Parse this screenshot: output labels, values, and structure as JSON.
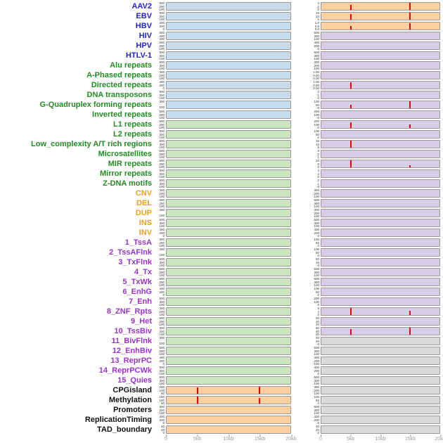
{
  "colors": {
    "label": {
      "virus": "#2525c8",
      "repeat": "#228b22",
      "sv": "#eda012",
      "chromatin": "#9933cc",
      "other": "#111111"
    },
    "panel": {
      "blue": "#c7dcec",
      "green": "#cbe5c1",
      "orange": "#fdd0a2",
      "purple": "#d7cde5",
      "gray": "#d9d9d9"
    },
    "spike": "#e60000"
  },
  "chart_data": {
    "type": "bar",
    "title": "",
    "xlabel": "",
    "ylabel": "",
    "x_ticks": [
      "0",
      "5kb",
      "10kb",
      "15kb",
      "20kb"
    ],
    "x_range_kb": [
      0,
      20
    ],
    "legend": "44 genomic feature tracks, two mini-panels per track; red spikes mark enrichment peaks near 5kb and 15kb",
    "rows": [
      {
        "label": "AAV2",
        "group": "virus",
        "left": {
          "bg": "blue",
          "yticks": [
            "500",
            "300",
            "100"
          ]
        },
        "right": {
          "bg": "orange",
          "yticks": [
            "4",
            "2",
            "0"
          ],
          "spikes": [
            {
              "kb": 5,
              "h": 0.7
            },
            {
              "kb": 15,
              "h": 1
            }
          ]
        }
      },
      {
        "label": "EBV",
        "group": "virus",
        "left": {
          "bg": "blue",
          "yticks": [
            "500",
            "300",
            "100"
          ]
        },
        "right": {
          "bg": "orange",
          "yticks": [
            "15",
            "10",
            "5"
          ],
          "spikes": [
            {
              "kb": 5,
              "h": 0.85
            },
            {
              "kb": 15,
              "h": 1
            }
          ]
        }
      },
      {
        "label": "HBV",
        "group": "virus",
        "left": {
          "bg": "blue",
          "yticks": [
            "400",
            "200",
            "0"
          ]
        },
        "right": {
          "bg": "orange",
          "yticks": [
            "1.0",
            "0.5",
            "0.0"
          ],
          "spikes": [
            {
              "kb": 5,
              "h": 0.55
            },
            {
              "kb": 15,
              "h": 0.9
            }
          ]
        }
      },
      {
        "label": "HIV",
        "group": "virus",
        "left": {
          "bg": "blue",
          "yticks": [
            "600",
            "400",
            "200"
          ]
        },
        "right": {
          "bg": "purple",
          "yticks": [
            "500",
            "300",
            "100"
          ]
        }
      },
      {
        "label": "HPV",
        "group": "virus",
        "left": {
          "bg": "blue",
          "yticks": [
            "500",
            "300",
            "100"
          ]
        },
        "right": {
          "bg": "purple",
          "yticks": [
            "400",
            "200",
            "0"
          ]
        }
      },
      {
        "label": "HTLV-1",
        "group": "virus",
        "left": {
          "bg": "blue",
          "yticks": [
            "500",
            "300",
            "100"
          ]
        },
        "right": {
          "bg": "purple",
          "yticks": [
            "500",
            "300",
            "100"
          ]
        }
      },
      {
        "label": "Alu repeats",
        "group": "repeat",
        "left": {
          "bg": "blue",
          "yticks": [
            "500",
            "300",
            "100"
          ]
        },
        "right": {
          "bg": "purple",
          "yticks": [
            "300",
            "200",
            "100"
          ]
        }
      },
      {
        "label": "A-Phased repeats",
        "group": "repeat",
        "left": {
          "bg": "blue",
          "yticks": [
            "300",
            "200",
            "100"
          ]
        },
        "right": {
          "bg": "purple",
          "yticks": [
            "1.00",
            "0.50",
            "0.00"
          ]
        }
      },
      {
        "label": "Directed repeats",
        "group": "repeat",
        "left": {
          "bg": "blue",
          "yticks": [
            "400",
            "200",
            "0"
          ]
        },
        "right": {
          "bg": "purple",
          "yticks": [
            "1.00",
            "0.50",
            "0.00"
          ],
          "spikes": [
            {
              "kb": 5,
              "h": 0.9
            }
          ]
        }
      },
      {
        "label": "DNA transposons",
        "group": "repeat",
        "left": {
          "bg": "blue",
          "yticks": [
            "500",
            "300",
            "100"
          ]
        },
        "right": {
          "bg": "purple",
          "yticks": [
            "2",
            "1",
            "0"
          ]
        }
      },
      {
        "label": "G-Quadruplex forming repeats",
        "group": "repeat",
        "left": {
          "bg": "blue",
          "yticks": [
            "300",
            "100"
          ]
        },
        "right": {
          "bg": "purple",
          "yticks": [
            "100",
            "50",
            "0"
          ],
          "spikes": [
            {
              "kb": 5,
              "h": 0.5
            },
            {
              "kb": 15,
              "h": 1
            }
          ]
        }
      },
      {
        "label": "Inverted repeats",
        "group": "repeat",
        "left": {
          "bg": "blue",
          "yticks": [
            "500",
            "300",
            "100"
          ]
        },
        "right": {
          "bg": "purple",
          "yticks": [
            "200",
            "100",
            "0"
          ]
        }
      },
      {
        "label": "L1 repeats",
        "group": "repeat",
        "left": {
          "bg": "green",
          "yticks": [
            "500",
            "300",
            "100"
          ]
        },
        "right": {
          "bg": "purple",
          "yticks": [
            "200",
            "100",
            "0"
          ],
          "spikes": [
            {
              "kb": 5,
              "h": 0.85
            },
            {
              "kb": 15,
              "h": 0.55
            }
          ]
        }
      },
      {
        "label": "L2 repeats",
        "group": "repeat",
        "left": {
          "bg": "green",
          "yticks": [
            "500",
            "300",
            "100"
          ]
        },
        "right": {
          "bg": "purple",
          "yticks": [
            "100",
            "50",
            "0"
          ]
        }
      },
      {
        "label": "Low_complexity A/T rich regions",
        "group": "repeat",
        "left": {
          "bg": "green",
          "yticks": [
            "500",
            "300",
            "100"
          ]
        },
        "right": {
          "bg": "purple",
          "yticks": [
            "15",
            "10",
            "5"
          ],
          "spikes": [
            {
              "kb": 5,
              "h": 1
            }
          ]
        }
      },
      {
        "label": "Microsatellites",
        "group": "repeat",
        "left": {
          "bg": "green",
          "yticks": [
            "500",
            "300",
            "100"
          ]
        },
        "right": {
          "bg": "purple",
          "yticks": [
            "3",
            "2",
            "1"
          ]
        }
      },
      {
        "label": "MIR repeats",
        "group": "repeat",
        "left": {
          "bg": "green",
          "yticks": [
            "500",
            "300",
            "100"
          ]
        },
        "right": {
          "bg": "purple",
          "yticks": [
            "10",
            "5",
            "0"
          ],
          "spikes": [
            {
              "kb": 5,
              "h": 1
            },
            {
              "kb": 15,
              "h": 0.35
            }
          ]
        }
      },
      {
        "label": "Mirror repeats",
        "group": "repeat",
        "left": {
          "bg": "green",
          "yticks": [
            "500",
            "300",
            "100"
          ]
        },
        "right": {
          "bg": "purple",
          "yticks": [
            "4",
            "2",
            "0"
          ]
        }
      },
      {
        "label": "Z-DNA motifs",
        "group": "repeat",
        "left": {
          "bg": "green",
          "yticks": [
            "500",
            "300",
            "100"
          ]
        },
        "right": {
          "bg": "purple",
          "yticks": [
            "2",
            "1",
            "0"
          ]
        }
      },
      {
        "label": "CNV",
        "group": "sv",
        "left": {
          "bg": "green",
          "yticks": [
            "300",
            "200",
            "100"
          ]
        },
        "right": {
          "bg": "purple",
          "yticks": [
            "300",
            "200",
            "100"
          ]
        }
      },
      {
        "label": "DEL",
        "group": "sv",
        "left": {
          "bg": "green",
          "yticks": [
            "300",
            "200",
            "100"
          ]
        },
        "right": {
          "bg": "purple",
          "yticks": [
            "500",
            "300",
            "100"
          ]
        }
      },
      {
        "label": "DUP",
        "group": "sv",
        "left": {
          "bg": "green",
          "yticks": [
            "300",
            "100"
          ]
        },
        "right": {
          "bg": "purple",
          "yticks": [
            "300",
            "200",
            "100"
          ]
        }
      },
      {
        "label": "INS",
        "group": "sv",
        "left": {
          "bg": "green",
          "yticks": [
            "500",
            "300",
            "100"
          ]
        },
        "right": {
          "bg": "purple",
          "yticks": [
            "500",
            "300",
            "100"
          ]
        }
      },
      {
        "label": "INV",
        "group": "sv",
        "left": {
          "bg": "green",
          "yticks": [
            "400",
            "200",
            "0"
          ]
        },
        "right": {
          "bg": "purple",
          "yticks": [
            "400",
            "200",
            "0"
          ]
        }
      },
      {
        "label": "1_TssA",
        "group": "chromatin",
        "left": {
          "bg": "green",
          "yticks": [
            "300",
            "200",
            "100"
          ]
        },
        "right": {
          "bg": "purple",
          "yticks": [
            "100",
            "50",
            "0"
          ]
        }
      },
      {
        "label": "2_TssAFlnk",
        "group": "chromatin",
        "left": {
          "bg": "green",
          "yticks": [
            "300",
            "100"
          ]
        },
        "right": {
          "bg": "purple",
          "yticks": [
            "100",
            "50",
            "0"
          ]
        }
      },
      {
        "label": "3_TxFlnk",
        "group": "chromatin",
        "left": {
          "bg": "green",
          "yticks": [
            "500",
            "300",
            "100"
          ]
        },
        "right": {
          "bg": "purple",
          "yticks": [
            "50",
            "25",
            "0"
          ]
        }
      },
      {
        "label": "4_Tx",
        "group": "chromatin",
        "left": {
          "bg": "green",
          "yticks": [
            "500",
            "300",
            "100"
          ]
        },
        "right": {
          "bg": "purple",
          "yticks": [
            "500",
            "300",
            "100"
          ]
        }
      },
      {
        "label": "5_TxWk",
        "group": "chromatin",
        "left": {
          "bg": "green",
          "yticks": [
            "500",
            "300",
            "100"
          ]
        },
        "right": {
          "bg": "purple",
          "yticks": [
            "500",
            "300",
            "100"
          ]
        }
      },
      {
        "label": "6_EnhG",
        "group": "chromatin",
        "left": {
          "bg": "green",
          "yticks": [
            "400",
            "200",
            "0"
          ]
        },
        "right": {
          "bg": "purple",
          "yticks": [
            "100",
            "50",
            "0"
          ]
        }
      },
      {
        "label": "7_Enh",
        "group": "chromatin",
        "left": {
          "bg": "green",
          "yticks": [
            "500",
            "300",
            "100"
          ]
        },
        "right": {
          "bg": "purple",
          "yticks": [
            "200",
            "100",
            "0"
          ]
        }
      },
      {
        "label": "8_ZNF_Rpts",
        "group": "chromatin",
        "left": {
          "bg": "green",
          "yticks": [
            "300",
            "200",
            "100"
          ]
        },
        "right": {
          "bg": "purple",
          "yticks": [
            "8",
            "4",
            "0"
          ],
          "spikes": [
            {
              "kb": 5,
              "h": 1
            },
            {
              "kb": 15,
              "h": 0.6
            }
          ]
        }
      },
      {
        "label": "9_Het",
        "group": "chromatin",
        "left": {
          "bg": "green",
          "yticks": [
            "500",
            "300",
            "100"
          ]
        },
        "right": {
          "bg": "purple",
          "yticks": [
            "30",
            "20",
            "10"
          ]
        }
      },
      {
        "label": "10_TssBiv",
        "group": "chromatin",
        "left": {
          "bg": "green",
          "yticks": [
            "300",
            "200",
            "100"
          ]
        },
        "right": {
          "bg": "purple",
          "yticks": [
            "60",
            "40",
            "20"
          ],
          "spikes": [
            {
              "kb": 5,
              "h": 0.8
            },
            {
              "kb": 15,
              "h": 1
            }
          ]
        }
      },
      {
        "label": "11_BivFlnk",
        "group": "chromatin",
        "left": {
          "bg": "green",
          "yticks": [
            "300",
            "100"
          ]
        },
        "right": {
          "bg": "gray",
          "yticks": [
            "40",
            "20",
            "0"
          ]
        }
      },
      {
        "label": "12_EnhBiv",
        "group": "chromatin",
        "left": {
          "bg": "green",
          "yticks": [
            "500",
            "300",
            "100"
          ]
        },
        "right": {
          "bg": "gray",
          "yticks": [
            "500",
            "300",
            "100"
          ]
        }
      },
      {
        "label": "13_ReprPC",
        "group": "chromatin",
        "left": {
          "bg": "green",
          "yticks": [
            "400",
            "200",
            "0"
          ]
        },
        "right": {
          "bg": "gray",
          "yticks": [
            "300",
            "200",
            "100"
          ]
        }
      },
      {
        "label": "14_ReprPCWk",
        "group": "chromatin",
        "left": {
          "bg": "green",
          "yticks": [
            "500",
            "300",
            "100"
          ]
        },
        "right": {
          "bg": "gray",
          "yticks": [
            "400",
            "200",
            "0"
          ]
        }
      },
      {
        "label": "15_Quies",
        "group": "chromatin",
        "left": {
          "bg": "green",
          "yticks": [
            "500",
            "300",
            "100"
          ]
        },
        "right": {
          "bg": "gray",
          "yticks": [
            "500",
            "300",
            "100"
          ]
        }
      },
      {
        "label": "CPGisland",
        "group": "other",
        "left": {
          "bg": "orange",
          "yticks": [
            "200",
            "100",
            "50"
          ],
          "spikes": [
            {
              "kb": 5,
              "h": 0.9
            },
            {
              "kb": 15,
              "h": 1
            }
          ]
        },
        "right": {
          "bg": "gray",
          "yticks": [
            "300",
            "200",
            "100"
          ]
        }
      },
      {
        "label": "Methylation",
        "group": "other",
        "left": {
          "bg": "orange",
          "yticks": [
            "150",
            "100",
            "50"
          ],
          "spikes": [
            {
              "kb": 5,
              "h": 1
            },
            {
              "kb": 15,
              "h": 0.85
            }
          ]
        },
        "right": {
          "bg": "gray",
          "yticks": [
            "100",
            "50",
            "0"
          ]
        }
      },
      {
        "label": "Promoters",
        "group": "other",
        "left": {
          "bg": "orange",
          "yticks": [
            "300",
            "200",
            "100"
          ]
        },
        "right": {
          "bg": "gray",
          "yticks": [
            "500",
            "300",
            "100"
          ]
        }
      },
      {
        "label": "ReplicationTiming",
        "group": "other",
        "left": {
          "bg": "orange",
          "yticks": [
            "400",
            "200",
            "0"
          ]
        },
        "right": {
          "bg": "gray",
          "yticks": [
            "400",
            "200",
            "0"
          ]
        }
      },
      {
        "label": "TAD_boundary",
        "group": "other",
        "left": {
          "bg": "orange",
          "yticks": [
            "40",
            "20",
            "0"
          ]
        },
        "right": {
          "bg": "gray",
          "yticks": [
            "40",
            "20",
            "0"
          ]
        }
      }
    ]
  }
}
